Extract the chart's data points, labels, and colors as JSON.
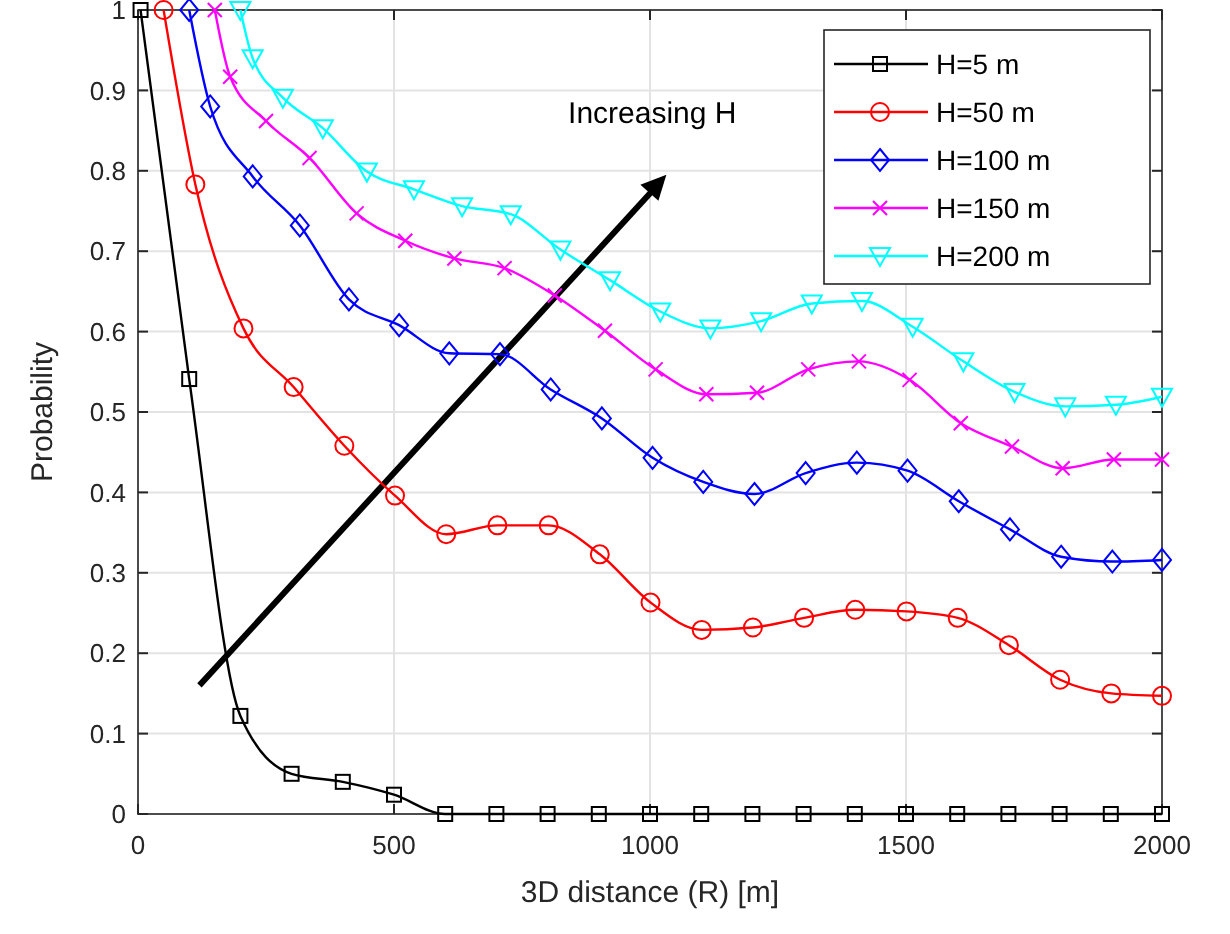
{
  "chart_data": {
    "type": "line",
    "xlabel": "3D distance (R) [m]",
    "ylabel": "Probability",
    "xlim": [
      0,
      2000
    ],
    "xticks": [
      0,
      500,
      1000,
      1500,
      2000
    ],
    "ylim": [
      0,
      1
    ],
    "yticks": [
      0,
      0.1,
      0.2,
      0.3,
      0.4,
      0.5,
      0.6,
      0.7,
      0.8,
      0.9,
      1
    ],
    "grid": true,
    "legend": "top right",
    "annotations": [
      "Increasing H"
    ],
    "series": [
      {
        "name": "H=5 m",
        "color": "#000000",
        "marker": "square",
        "x": [
          5,
          100,
          200,
          300,
          400,
          500,
          600,
          700,
          800,
          900,
          1000,
          1100,
          1200,
          1300,
          1400,
          1500,
          1600,
          1700,
          1800,
          1900,
          2000
        ],
        "values": [
          1,
          0.541,
          0.122,
          0.05,
          0.04,
          0.024,
          0,
          0,
          0,
          0,
          0,
          0,
          0,
          0,
          0,
          0,
          0,
          0,
          0,
          0,
          0
        ]
      },
      {
        "name": "H=50 m",
        "color": "#ff0000",
        "marker": "circle",
        "x": [
          50,
          112,
          206,
          304,
          403,
          502,
          602,
          702,
          802,
          902,
          1001,
          1101,
          1201,
          1301,
          1401,
          1501,
          1601,
          1701,
          1801,
          1901,
          2000
        ],
        "values": [
          1,
          0.783,
          0.604,
          0.531,
          0.458,
          0.396,
          0.348,
          0.359,
          0.359,
          0.323,
          0.263,
          0.229,
          0.232,
          0.244,
          0.254,
          0.252,
          0.244,
          0.21,
          0.167,
          0.15,
          0.147
        ]
      },
      {
        "name": "H=100 m",
        "color": "#0000ff",
        "marker": "diamond",
        "x": [
          100,
          141,
          224,
          316,
          412,
          510,
          608,
          707,
          806,
          906,
          1005,
          1104,
          1204,
          1304,
          1404,
          1503,
          1603,
          1703,
          1803,
          1903,
          2000
        ],
        "values": [
          1,
          0.88,
          0.793,
          0.732,
          0.64,
          0.608,
          0.573,
          0.572,
          0.528,
          0.492,
          0.443,
          0.413,
          0.398,
          0.424,
          0.437,
          0.427,
          0.389,
          0.354,
          0.32,
          0.314,
          0.316
        ]
      },
      {
        "name": "H=150 m",
        "color": "#ff00ff",
        "marker": "cross",
        "x": [
          150,
          180,
          250,
          335,
          427,
          522,
          618,
          716,
          814,
          912,
          1011,
          1110,
          1209,
          1309,
          1408,
          1507,
          1607,
          1707,
          1806,
          1906,
          2000
        ],
        "values": [
          1,
          0.917,
          0.862,
          0.816,
          0.747,
          0.713,
          0.691,
          0.679,
          0.645,
          0.601,
          0.553,
          0.522,
          0.524,
          0.553,
          0.563,
          0.54,
          0.486,
          0.457,
          0.43,
          0.441,
          0.441
        ]
      },
      {
        "name": "H=200 m",
        "color": "#00ffff",
        "marker": "triangle",
        "x": [
          200,
          224,
          283,
          361,
          447,
          539,
          633,
          728,
          825,
          922,
          1020,
          1118,
          1217,
          1316,
          1414,
          1513,
          1612,
          1712,
          1811,
          1910,
          2000
        ],
        "values": [
          1,
          0.94,
          0.891,
          0.853,
          0.799,
          0.777,
          0.756,
          0.746,
          0.702,
          0.664,
          0.625,
          0.604,
          0.613,
          0.635,
          0.638,
          0.606,
          0.563,
          0.525,
          0.507,
          0.509,
          0.519
        ]
      }
    ]
  }
}
